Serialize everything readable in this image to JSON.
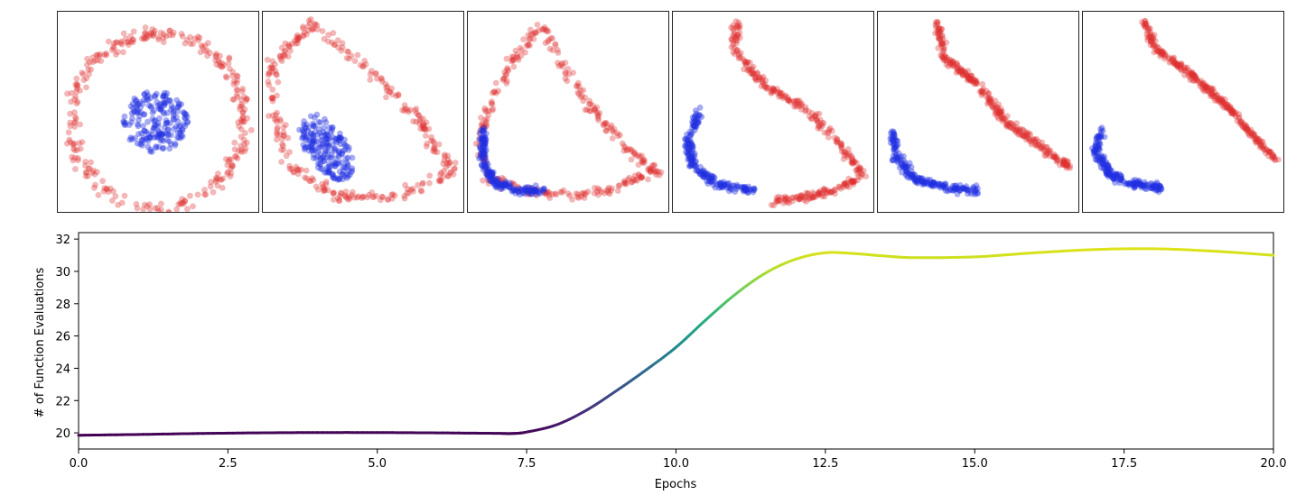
{
  "chart_data": [
    {
      "type": "scatter",
      "title": "",
      "panels": [
        {
          "stage": 1,
          "outer_class": "red ring around central cluster",
          "inner_class": "blue compact disk"
        },
        {
          "stage": 2,
          "outer_class": "red stretched ring",
          "inner_class": "blue elongated ellipse"
        },
        {
          "stage": 3,
          "outer_class": "red triangle-like loop",
          "inner_class": "blue arc at lower-left"
        },
        {
          "stage": 4,
          "outer_class": "red triangle outline",
          "inner_class": "blue arc at lower-left"
        },
        {
          "stage": 5,
          "outer_class": "red diagonal band",
          "inner_class": "blue arc at lower-left"
        },
        {
          "stage": 6,
          "outer_class": "red diagonal band",
          "inner_class": "blue arc at lower-left"
        }
      ],
      "colors": {
        "red": "#e03030",
        "blue": "#2030e0"
      }
    },
    {
      "type": "line",
      "title": "",
      "xlabel": "Epochs",
      "ylabel": "# of Function Evaluations",
      "xlim": [
        0,
        20
      ],
      "ylim": [
        19,
        32.4
      ],
      "xticks": [
        "0.0",
        "2.5",
        "5.0",
        "7.5",
        "10.0",
        "12.5",
        "15.0",
        "17.5",
        "20.0"
      ],
      "yticks": [
        "20",
        "22",
        "24",
        "26",
        "28",
        "30",
        "32"
      ],
      "colormap": "viridis",
      "x": [
        0,
        1,
        2,
        3,
        4,
        5,
        6,
        7,
        7.25,
        7.5,
        8,
        8.5,
        9,
        9.5,
        10,
        10.5,
        11,
        11.5,
        12,
        12.5,
        13,
        13.5,
        14,
        15,
        16,
        17,
        18,
        19,
        20
      ],
      "y": [
        19.85,
        19.9,
        19.96,
        20.0,
        20.02,
        20.02,
        20.0,
        19.97,
        19.96,
        20.05,
        20.5,
        21.4,
        22.6,
        23.9,
        25.3,
        27.0,
        28.6,
        29.9,
        30.75,
        31.15,
        31.1,
        30.95,
        30.85,
        30.9,
        31.15,
        31.35,
        31.4,
        31.25,
        31.0
      ]
    }
  ]
}
